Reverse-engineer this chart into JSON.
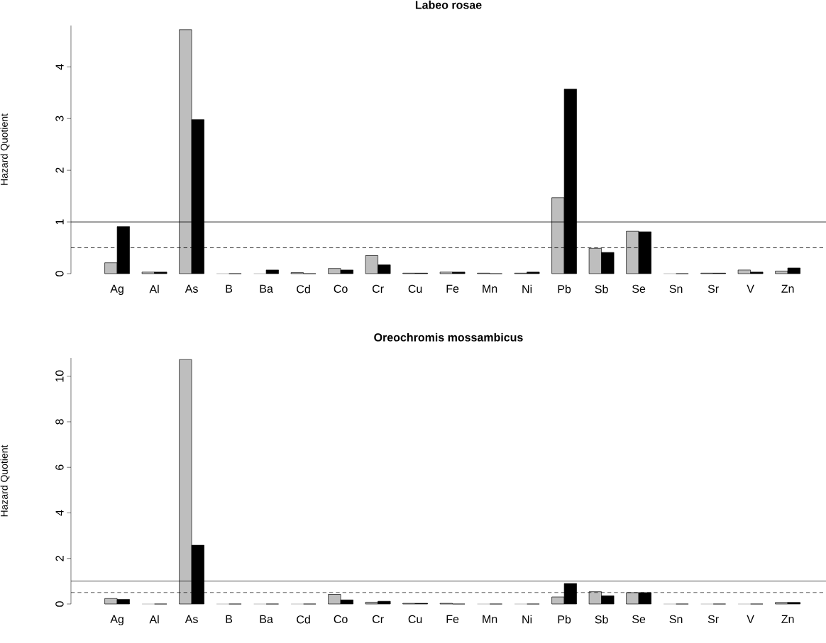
{
  "chart_data": [
    {
      "type": "bar",
      "title": "Labeo rosae",
      "ylabel": "Hazard Quotient",
      "categories": [
        "Ag",
        "Al",
        "As",
        "B",
        "Ba",
        "Cd",
        "Co",
        "Cr",
        "Cu",
        "Fe",
        "Mn",
        "Ni",
        "Pb",
        "Sb",
        "Se",
        "Sn",
        "Sr",
        "V",
        "Zn"
      ],
      "series": [
        {
          "color": "#bebebe",
          "values": [
            0.21,
            0.03,
            4.72,
            0,
            0,
            0.02,
            0.1,
            0.35,
            0.01,
            0.03,
            0.01,
            0.01,
            1.47,
            0.49,
            0.82,
            0,
            0.01,
            0.07,
            0.05
          ]
        },
        {
          "color": "#000000",
          "values": [
            0.91,
            0.03,
            2.98,
            0,
            0.07,
            0,
            0.07,
            0.17,
            0.01,
            0.03,
            0,
            0.03,
            3.57,
            0.41,
            0.81,
            0,
            0.01,
            0.03,
            0.11
          ]
        }
      ],
      "ylim": [
        0,
        4.8
      ],
      "yticks": [
        0,
        1,
        2,
        3,
        4
      ],
      "ref_lines": [
        {
          "axis": "y",
          "value": 1,
          "color": "#000000",
          "line_style": "solid"
        },
        {
          "axis": "y",
          "value": 0.5,
          "color": "#000000",
          "line_style": "dashed"
        }
      ]
    },
    {
      "type": "bar",
      "title": "Oreochromis mossambicus",
      "ylabel": "Hazard Quotient",
      "categories": [
        "Ag",
        "Al",
        "As",
        "B",
        "Ba",
        "Cd",
        "Co",
        "Cr",
        "Cu",
        "Fe",
        "Mn",
        "Ni",
        "Pb",
        "Sb",
        "Se",
        "Sn",
        "Sr",
        "V",
        "Zn"
      ],
      "series": [
        {
          "color": "#bebebe",
          "values": [
            0.24,
            0,
            10.73,
            0,
            0,
            0,
            0.42,
            0.08,
            0.03,
            0.03,
            0,
            0,
            0.31,
            0.54,
            0.5,
            0,
            0,
            0,
            0.07
          ]
        },
        {
          "color": "#000000",
          "values": [
            0.2,
            0,
            2.58,
            0,
            0,
            0,
            0.18,
            0.12,
            0.03,
            0,
            0,
            0,
            0.9,
            0.36,
            0.5,
            0,
            0,
            0,
            0.07
          ]
        }
      ],
      "ylim": [
        0,
        10.8
      ],
      "yticks": [
        0,
        2,
        4,
        6,
        8,
        10
      ],
      "ref_lines": [
        {
          "axis": "y",
          "value": 1,
          "color": "#000000",
          "line_style": "solid"
        },
        {
          "axis": "y",
          "value": 0.5,
          "color": "#000000",
          "line_style": "dashed"
        }
      ]
    }
  ]
}
